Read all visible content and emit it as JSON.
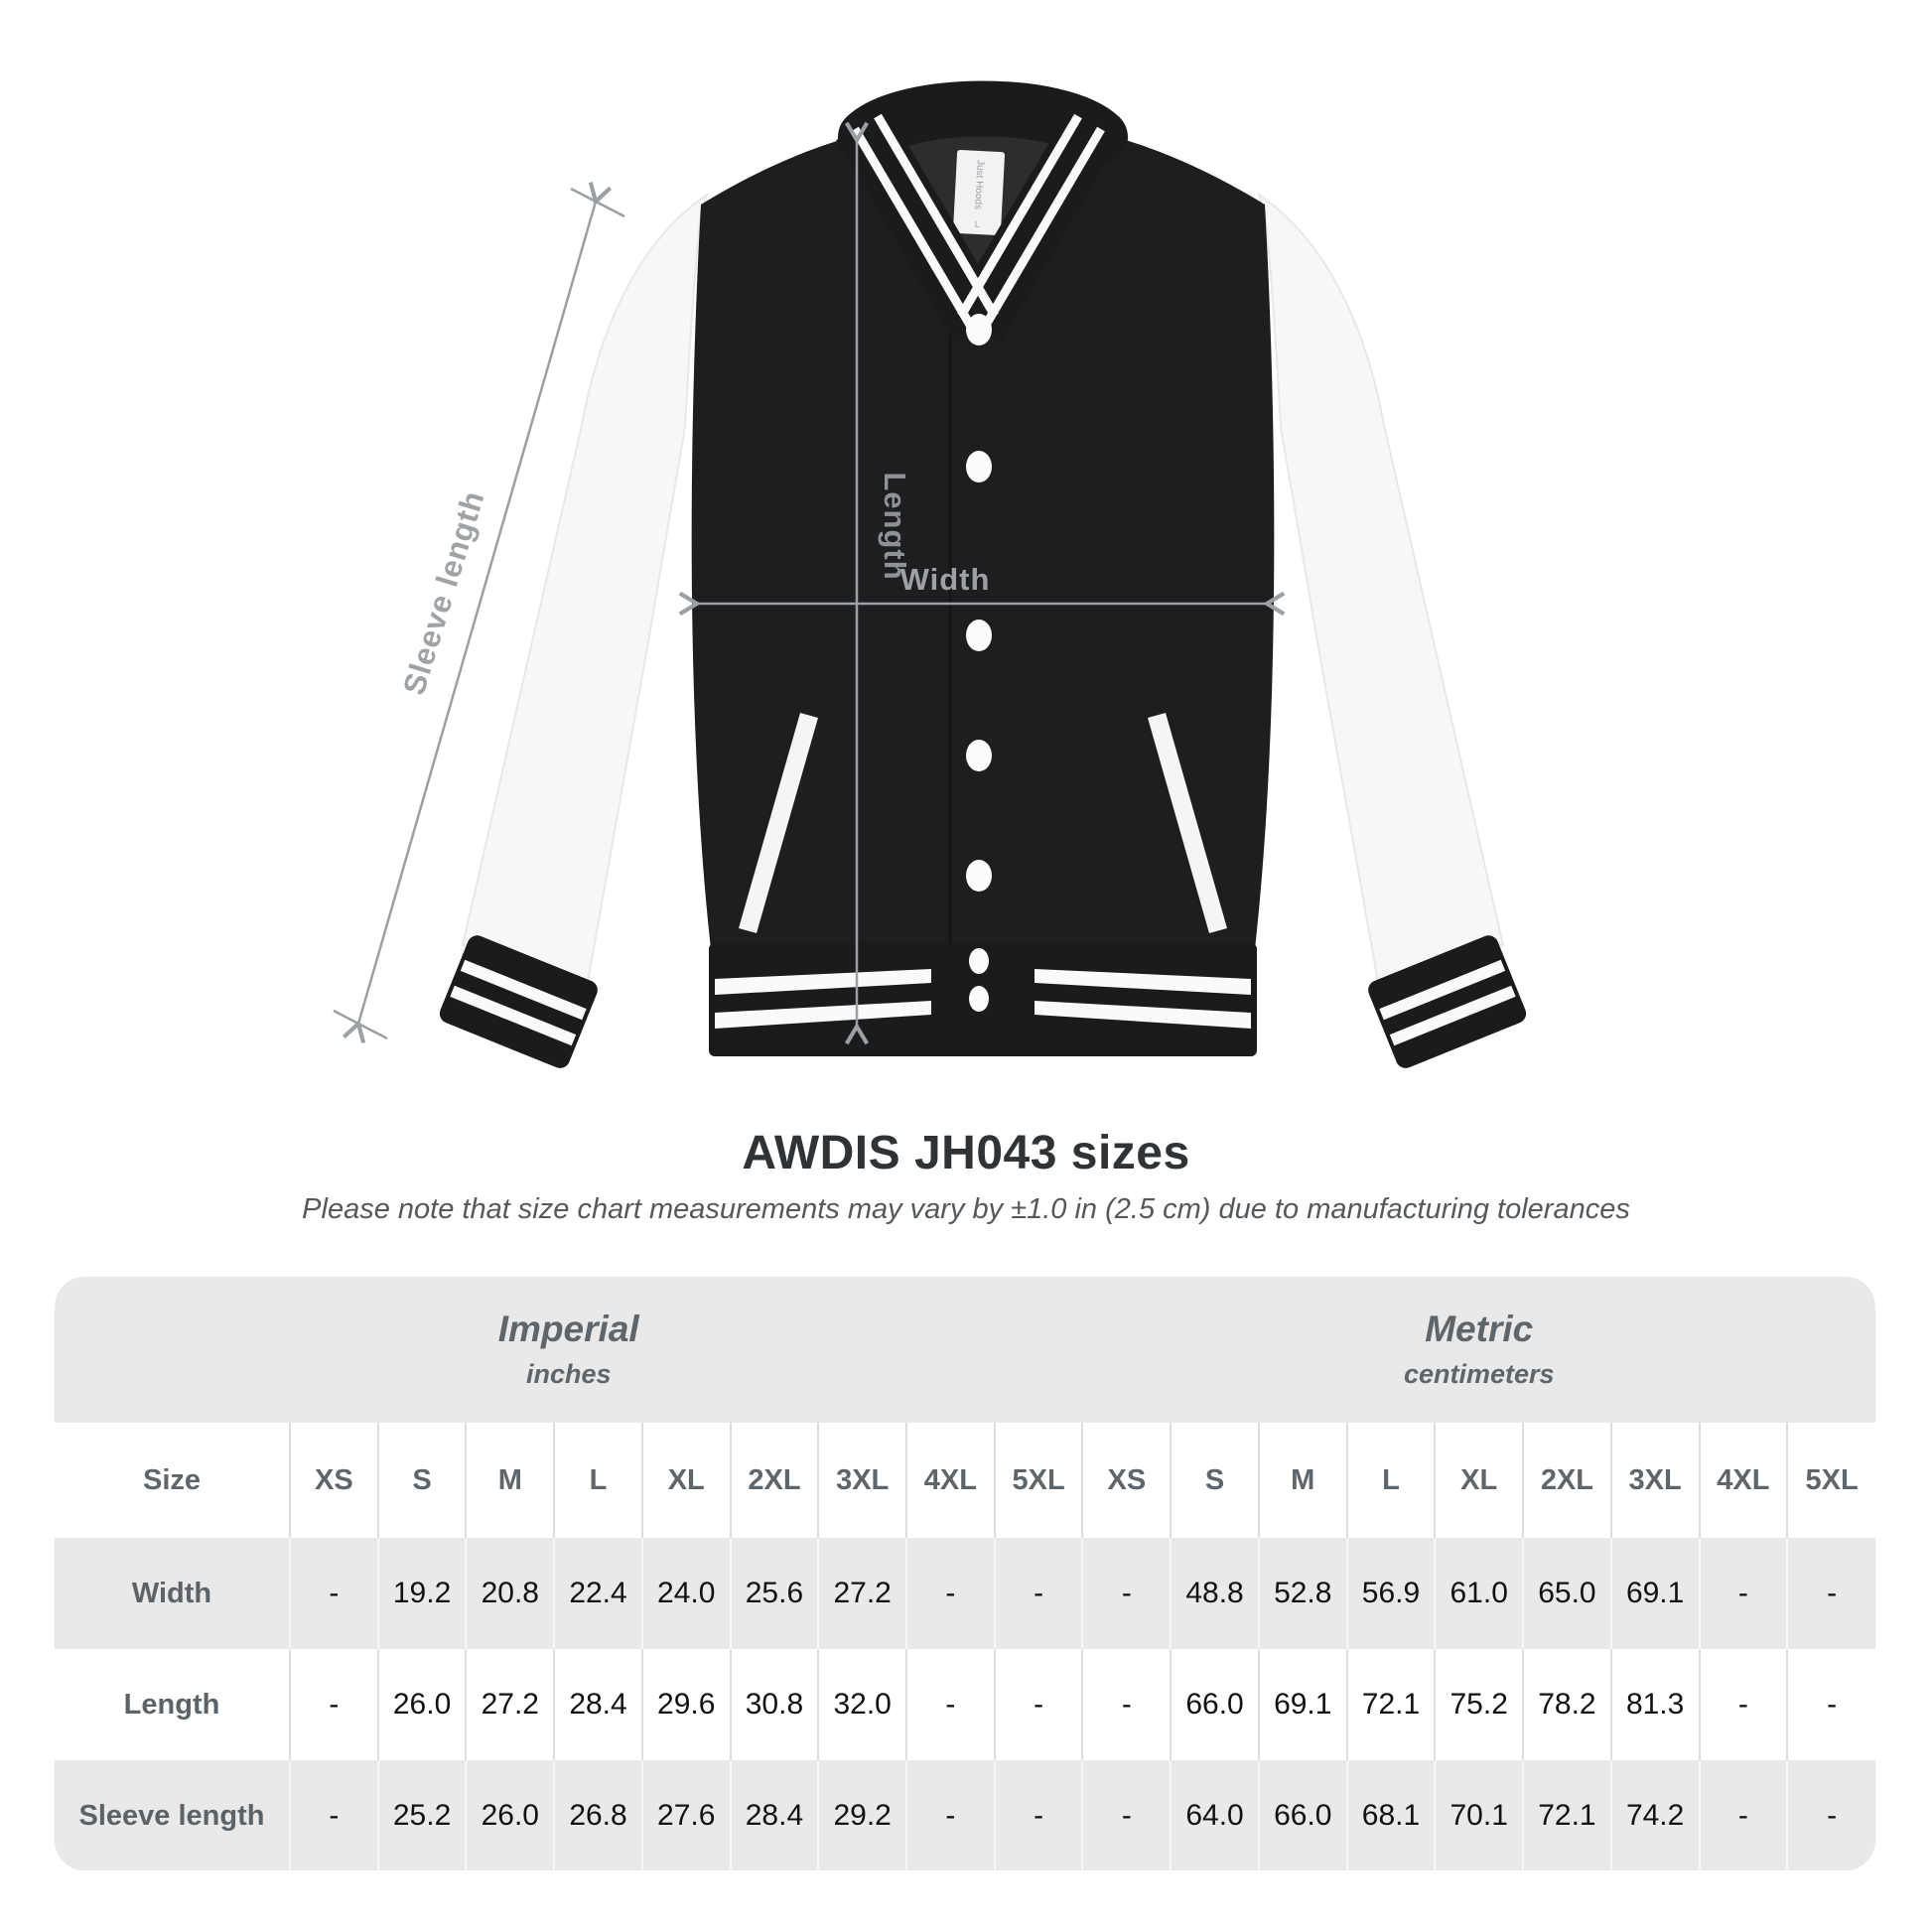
{
  "title": "AWDIS JH043 sizes",
  "subtitle": "Please note that size chart measurements may vary by ±1.0 in (2.5 cm) due to manufacturing tolerances",
  "figure": {
    "length_label": "Length",
    "width_label": "Width",
    "sleeve_label": "Sleeve length",
    "tag_brand": "Just Hoods",
    "tag_size": "L",
    "annotation_color": "#9aa0a3",
    "jacket_body_color": "#1e1e20",
    "jacket_sleeve_color": "#f7f7f8"
  },
  "table": {
    "groups": [
      {
        "label": "Imperial",
        "sublabel": "inches"
      },
      {
        "label": "Metric",
        "sublabel": "centimeters"
      }
    ],
    "size_header": "Size",
    "sizes": [
      "XS",
      "S",
      "M",
      "L",
      "XL",
      "2XL",
      "3XL",
      "4XL",
      "5XL"
    ],
    "rows": [
      {
        "label": "Width",
        "imperial": [
          "-",
          "19.2",
          "20.8",
          "22.4",
          "24.0",
          "25.6",
          "27.2",
          "-",
          "-"
        ],
        "metric": [
          "-",
          "48.8",
          "52.8",
          "56.9",
          "61.0",
          "65.0",
          "69.1",
          "-",
          "-"
        ]
      },
      {
        "label": "Length",
        "imperial": [
          "-",
          "26.0",
          "27.2",
          "28.4",
          "29.6",
          "30.8",
          "32.0",
          "-",
          "-"
        ],
        "metric": [
          "-",
          "66.0",
          "69.1",
          "72.1",
          "75.2",
          "78.2",
          "81.3",
          "-",
          "-"
        ]
      },
      {
        "label": "Sleeve length",
        "imperial": [
          "-",
          "25.2",
          "26.0",
          "26.8",
          "27.6",
          "28.4",
          "29.2",
          "-",
          "-"
        ],
        "metric": [
          "-",
          "64.0",
          "66.0",
          "68.1",
          "70.1",
          "72.1",
          "74.2",
          "-",
          "-"
        ]
      }
    ]
  },
  "chart_data": {
    "type": "table",
    "title": "AWDIS JH043 sizes",
    "subtitle": "Please note that size chart measurements may vary by ±1.0 in (2.5 cm) due to manufacturing tolerances",
    "column_groups": [
      "Imperial (inches)",
      "Metric (centimeters)"
    ],
    "columns": [
      "Size",
      "XS",
      "S",
      "M",
      "L",
      "XL",
      "2XL",
      "3XL",
      "4XL",
      "5XL",
      "XS",
      "S",
      "M",
      "L",
      "XL",
      "2XL",
      "3XL",
      "4XL",
      "5XL"
    ],
    "rows": [
      [
        "Width",
        "-",
        "19.2",
        "20.8",
        "22.4",
        "24.0",
        "25.6",
        "27.2",
        "-",
        "-",
        "-",
        "48.8",
        "52.8",
        "56.9",
        "61.0",
        "65.0",
        "69.1",
        "-",
        "-"
      ],
      [
        "Length",
        "-",
        "26.0",
        "27.2",
        "28.4",
        "29.6",
        "30.8",
        "32.0",
        "-",
        "-",
        "-",
        "66.0",
        "69.1",
        "72.1",
        "75.2",
        "78.2",
        "81.3",
        "-",
        "-"
      ],
      [
        "Sleeve length",
        "-",
        "25.2",
        "26.0",
        "26.8",
        "27.6",
        "28.4",
        "29.2",
        "-",
        "-",
        "-",
        "64.0",
        "66.0",
        "68.1",
        "70.1",
        "72.1",
        "74.2",
        "-",
        "-"
      ]
    ]
  }
}
